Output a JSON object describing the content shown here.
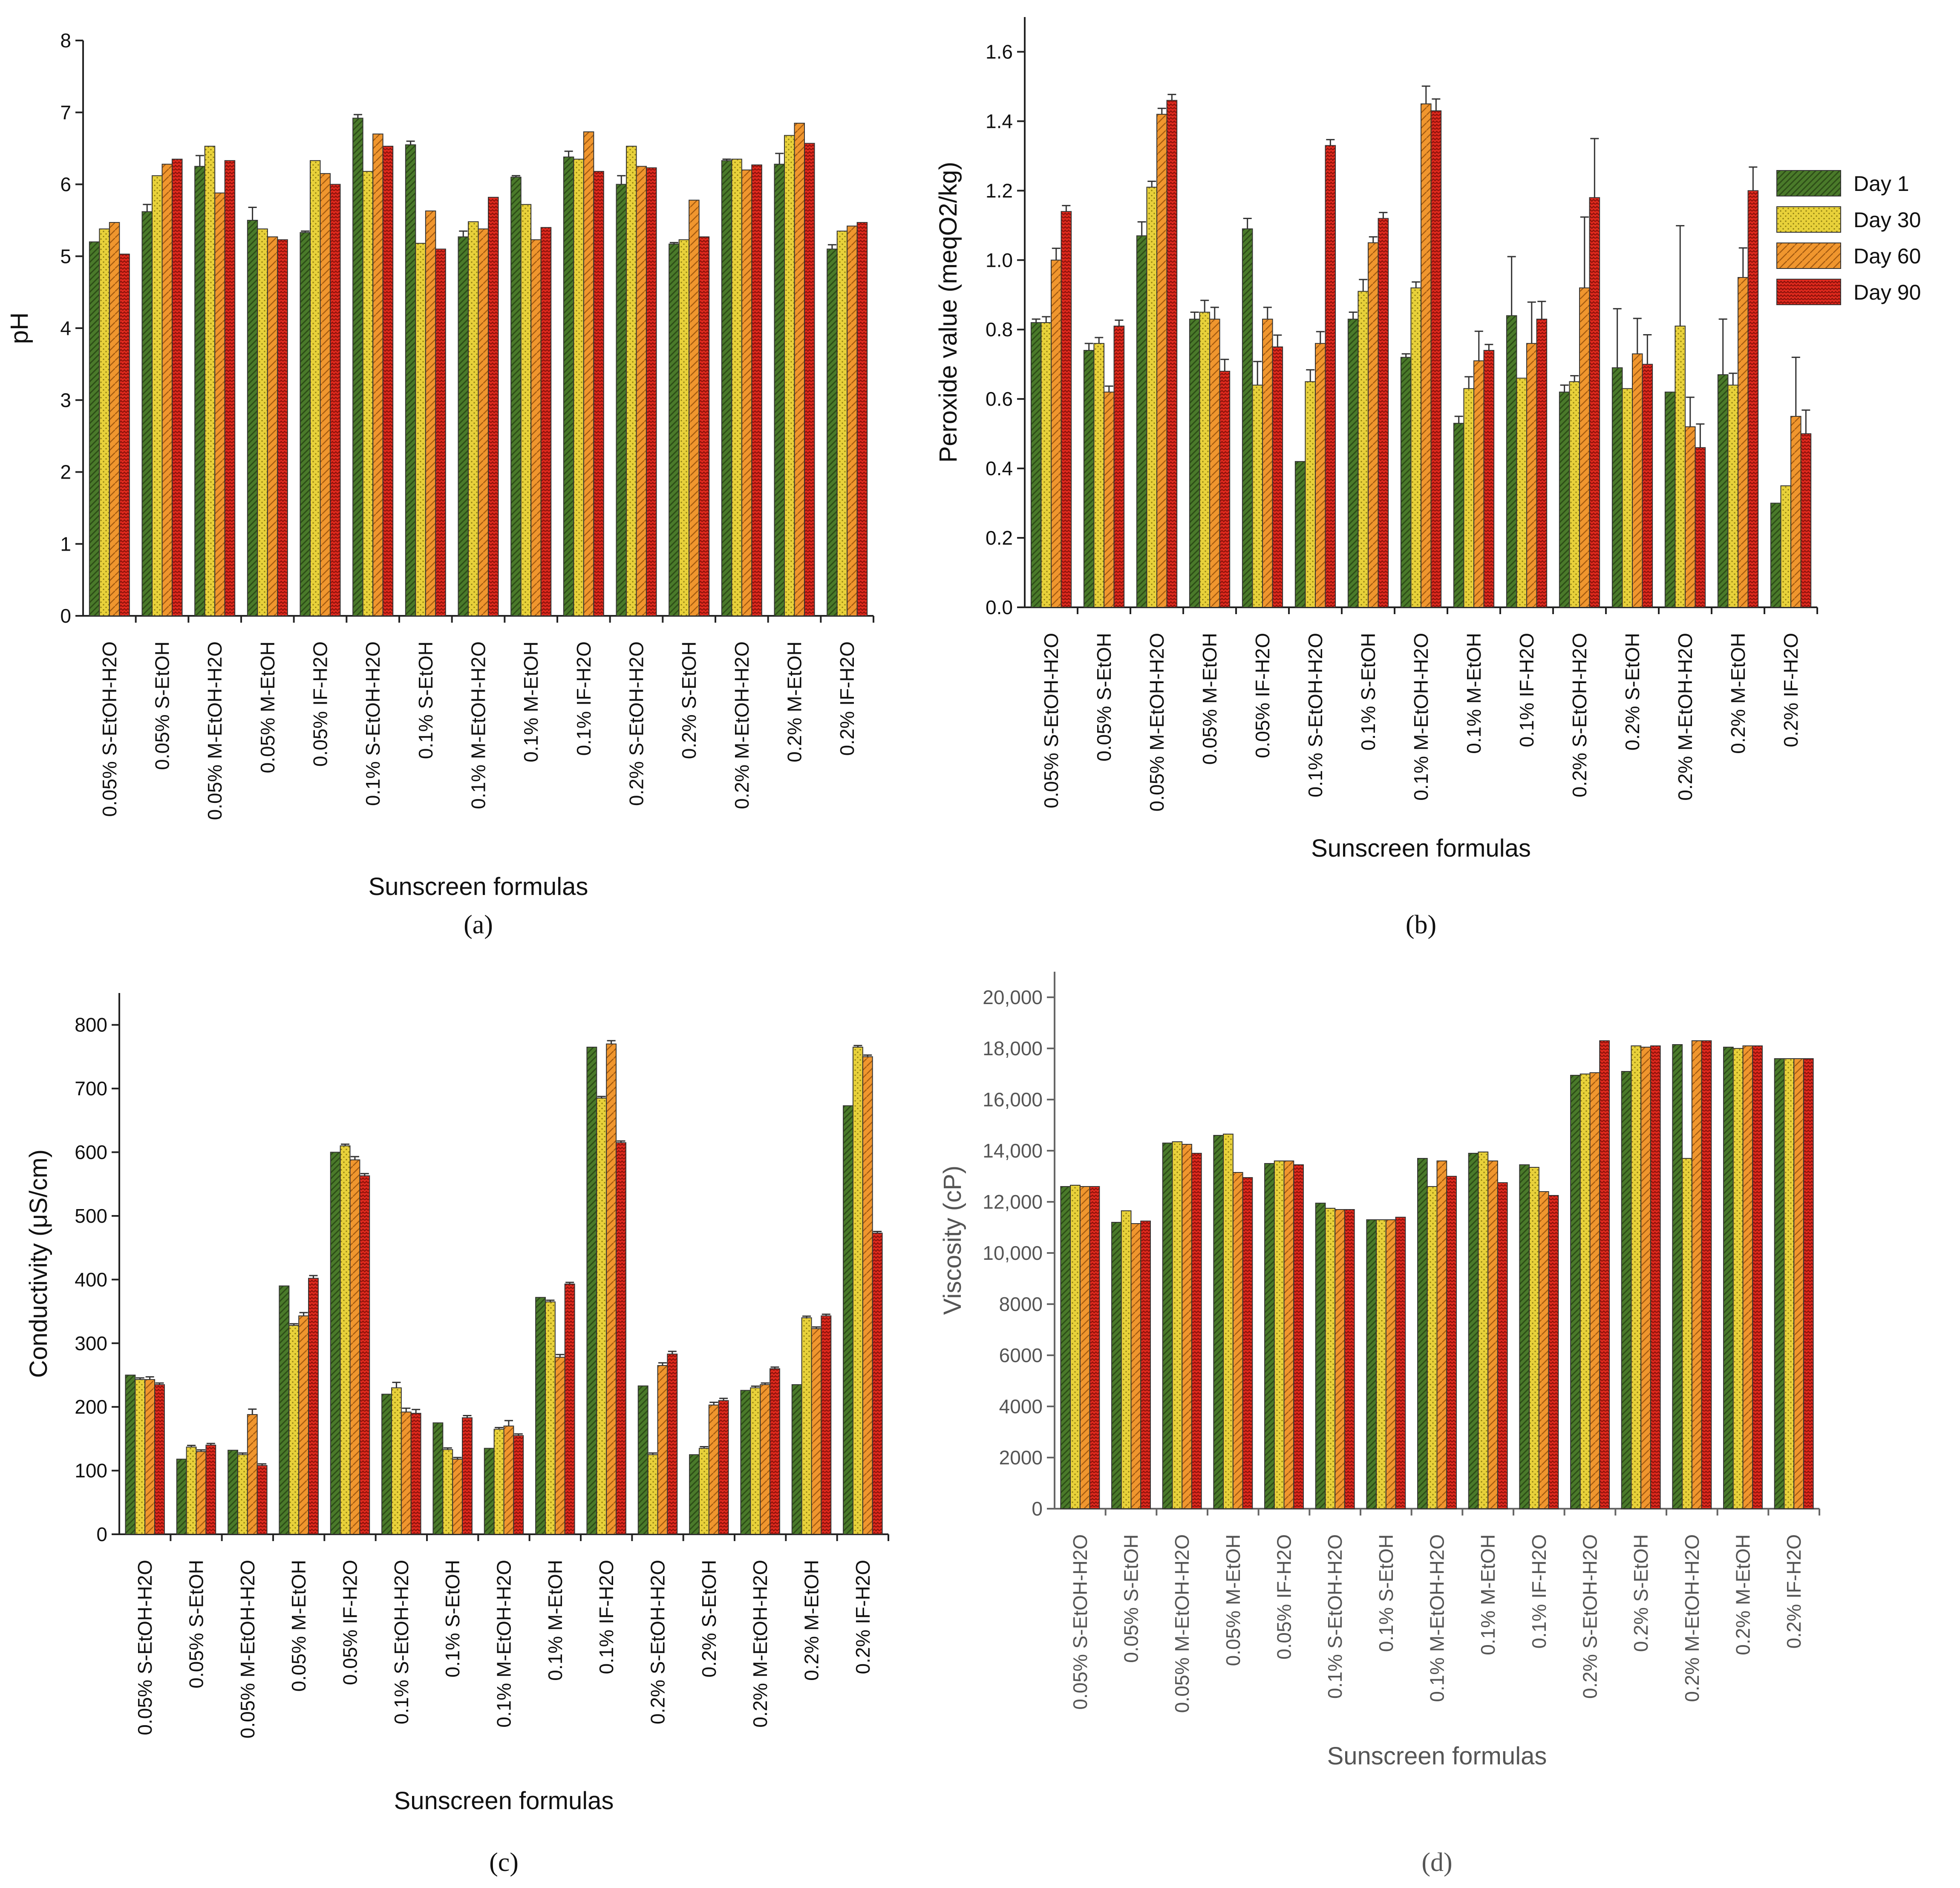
{
  "colors": {
    "day1": "#4a7a2a",
    "day30": "#e8d13a",
    "day60": "#f0962e",
    "day90": "#e02a1e"
  },
  "legend": {
    "items": [
      "Day 1",
      "Day 30",
      "Day 60",
      "Day 90"
    ]
  },
  "chart_data": [
    {
      "id": "a",
      "type": "bar",
      "panel_label": "(a)",
      "ylabel": "pH",
      "xlabel": "Sunscreen formulas",
      "ylim": [
        0,
        8
      ],
      "yticks": [
        "0",
        "1",
        "2",
        "3",
        "4",
        "5",
        "6",
        "7",
        "8"
      ],
      "categories": [
        "0.05% S-EtOH-H2O",
        "0.05% S-EtOH",
        "0.05% M-EtOH-H2O",
        "0.05% M-EtOH",
        "0.05% IF-H2O",
        "0.1% S-EtOH-H2O",
        "0.1% S-EtOH",
        "0.1% M-EtOH-H2O",
        "0.1% M-EtOH",
        "0.1% IF-H2O",
        "0.2% S-EtOH-H2O",
        "0.2% S-EtOH",
        "0.2% M-EtOH-H2O",
        "0.2% M-EtOH",
        "0.2% IF-H2O"
      ],
      "series": [
        {
          "name": "Day 1",
          "values": [
            5.2,
            5.62,
            6.25,
            5.5,
            5.33,
            6.92,
            6.55,
            5.27,
            6.1,
            6.38,
            6.0,
            5.17,
            6.33,
            6.28,
            5.1
          ],
          "errors": [
            0.0,
            0.1,
            0.15,
            0.18,
            0.02,
            0.05,
            0.05,
            0.08,
            0.02,
            0.08,
            0.12,
            0.02,
            0.02,
            0.15,
            0.06
          ]
        },
        {
          "name": "Day 30",
          "values": [
            5.38,
            6.12,
            6.53,
            5.38,
            6.33,
            6.18,
            5.18,
            5.48,
            5.72,
            6.35,
            6.53,
            5.23,
            6.35,
            6.68,
            5.35
          ]
        },
        {
          "name": "Day 60",
          "values": [
            5.47,
            6.28,
            5.88,
            5.27,
            6.15,
            6.7,
            5.63,
            5.38,
            5.23,
            6.73,
            6.25,
            5.78,
            6.2,
            6.85,
            5.42
          ]
        },
        {
          "name": "Day 90",
          "values": [
            5.03,
            6.35,
            6.33,
            5.23,
            6.0,
            6.53,
            5.1,
            5.82,
            5.4,
            6.18,
            6.23,
            5.27,
            6.27,
            6.57,
            5.47
          ]
        }
      ]
    },
    {
      "id": "b",
      "type": "bar",
      "panel_label": "(b)",
      "ylabel": "Peroxide value (meqO2/kg)",
      "xlabel": "Sunscreen formulas",
      "ylim": [
        0,
        1.7
      ],
      "yticks": [
        "0.0",
        "0.2",
        "0.4",
        "0.6",
        "0.8",
        "1.0",
        "1.2",
        "1.4",
        "1.6"
      ],
      "categories": [
        "0.05% S-EtOH-H2O",
        "0.05% S-EtOH",
        "0.05% M-EtOH-H2O",
        "0.05% M-EtOH",
        "0.05% IF-H2O",
        "0.1% S-EtOH-H2O",
        "0.1% S-EtOH",
        "0.1% M-EtOH-H2O",
        "0.1% M-EtOH",
        "0.1% IF-H2O",
        "0.2% S-EtOH-H2O",
        "0.2% S-EtOH",
        "0.2% M-EtOH-H2O",
        "0.2% M-EtOH",
        "0.2% IF-H2O"
      ],
      "series": [
        {
          "name": "Day 1",
          "values": [
            0.82,
            0.74,
            1.07,
            0.83,
            1.09,
            0.42,
            0.83,
            0.72,
            0.53,
            0.84,
            0.62,
            0.69,
            0.62,
            0.67,
            0.3
          ],
          "errors": [
            0.01,
            0.02,
            0.04,
            0.02,
            0.03,
            0.0,
            0.02,
            0.01,
            0.02,
            0.17,
            0.02,
            0.17,
            0.0,
            0.16,
            0.0
          ]
        },
        {
          "name": "Day 30",
          "values": [
            0.82,
            0.76,
            1.21,
            0.85,
            0.64,
            0.65,
            0.91,
            0.92,
            0.63,
            0.66,
            0.65,
            0.63,
            0.81,
            0.64,
            0.35
          ]
        },
        {
          "name": "Day 60",
          "values": [
            1.0,
            0.62,
            1.42,
            0.83,
            0.83,
            0.76,
            1.05,
            1.45,
            0.71,
            0.76,
            0.92,
            0.73,
            0.52,
            0.95,
            0.55
          ]
        },
        {
          "name": "Day 90",
          "values": [
            1.14,
            0.81,
            1.46,
            0.68,
            0.75,
            1.33,
            1.12,
            1.43,
            0.74,
            0.83,
            1.18,
            0.7,
            0.46,
            1.2,
            0.5
          ]
        }
      ]
    },
    {
      "id": "c",
      "type": "bar",
      "panel_label": "(c)",
      "ylabel": "Conductivity (μS/cm)",
      "xlabel": "Sunscreen formulas",
      "ylim": [
        0,
        850
      ],
      "yticks": [
        "0",
        "100",
        "200",
        "300",
        "400",
        "500",
        "600",
        "700",
        "800"
      ],
      "categories": [
        "0.05% S-EtOH-H2O",
        "0.05% S-EtOH",
        "0.05% M-EtOH-H2O",
        "0.05% M-EtOH",
        "0.05% IF-H2O",
        "0.1% S-EtOH-H2O",
        "0.1% S-EtOH",
        "0.1% M-EtOH-H2O",
        "0.1% M-EtOH",
        "0.1% IF-H2O",
        "0.2% S-EtOH-H2O",
        "0.2% S-EtOH",
        "0.2% M-EtOH-H2O",
        "0.2% M-EtOH",
        "0.2% IF-H2O"
      ],
      "series": [
        {
          "name": "Day 1",
          "values": [
            250,
            118,
            132,
            390,
            600,
            220,
            175,
            135,
            372,
            765,
            233,
            125,
            226,
            235,
            673
          ]
        },
        {
          "name": "Day 30",
          "values": [
            243,
            137,
            125,
            328,
            610,
            230,
            133,
            165,
            365,
            685,
            125,
            135,
            230,
            340,
            765
          ]
        },
        {
          "name": "Day 60",
          "values": [
            243,
            130,
            188,
            343,
            588,
            192,
            118,
            170,
            278,
            770,
            265,
            203,
            235,
            323,
            750
          ]
        },
        {
          "name": "Day 90",
          "values": [
            235,
            140,
            108,
            402,
            563,
            190,
            183,
            155,
            393,
            615,
            283,
            210,
            260,
            343,
            473
          ]
        }
      ]
    },
    {
      "id": "d",
      "type": "bar",
      "panel_label": "(d)",
      "ylabel": "Viscosity (cP)",
      "xlabel": "Sunscreen formulas",
      "ylim": [
        0,
        21000
      ],
      "yticks": [
        "0",
        "2000",
        "4000",
        "6000",
        "8000",
        "10,000",
        "12,000",
        "14,000",
        "16,000",
        "18,000",
        "20,000"
      ],
      "categories": [
        "0.05% S-EtOH-H2O",
        "0.05% S-EtOH",
        "0.05% M-EtOH-H2O",
        "0.05% M-EtOH",
        "0.05% IF-H2O",
        "0.1% S-EtOH-H2O",
        "0.1% S-EtOH",
        "0.1% M-EtOH-H2O",
        "0.1% M-EtOH",
        "0.1% IF-H2O",
        "0.2% S-EtOH-H2O",
        "0.2% S-EtOH",
        "0.2% M-EtOH-H2O",
        "0.2% M-EtOH",
        "0.2% IF-H2O"
      ],
      "series": [
        {
          "name": "Day 1",
          "values": [
            12600,
            11200,
            14300,
            14600,
            13500,
            11950,
            11300,
            13700,
            13900,
            13450,
            16950,
            17100,
            18150,
            18050,
            17600
          ]
        },
        {
          "name": "Day 30",
          "values": [
            12650,
            11650,
            14350,
            14650,
            13600,
            11750,
            11300,
            12600,
            13950,
            13350,
            17000,
            18100,
            13700,
            18000,
            17600
          ]
        },
        {
          "name": "Day 60",
          "values": [
            12600,
            11150,
            14250,
            13150,
            13600,
            11700,
            11300,
            13600,
            13600,
            12400,
            17050,
            18050,
            18300,
            18100,
            17600
          ]
        },
        {
          "name": "Day 90",
          "values": [
            12600,
            11250,
            13900,
            12950,
            13450,
            11700,
            11400,
            13000,
            12750,
            12250,
            18300,
            18100,
            18300,
            18100,
            17600
          ]
        }
      ]
    }
  ]
}
